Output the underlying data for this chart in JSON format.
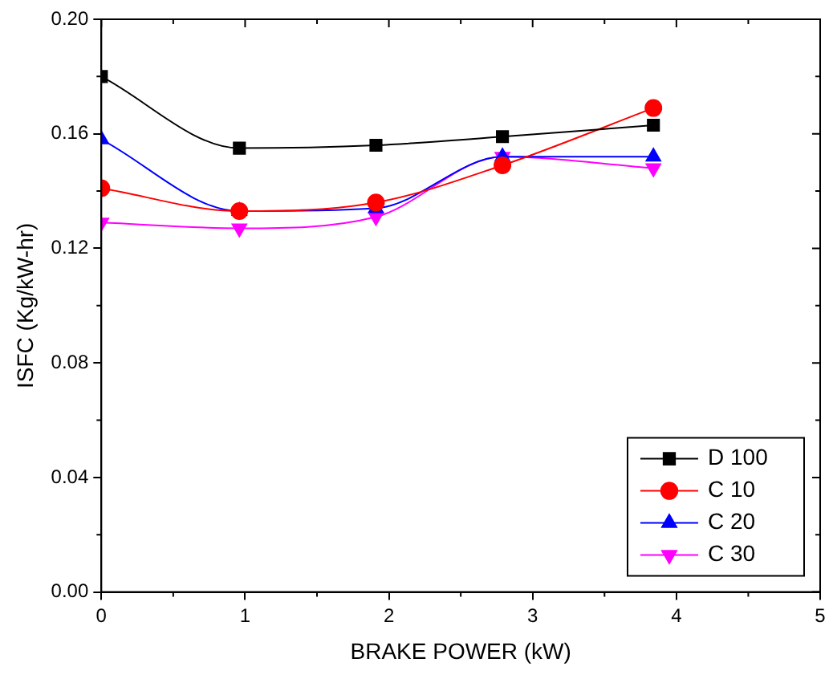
{
  "chart_data": {
    "type": "line",
    "xlabel": "BRAKE POWER (kW)",
    "ylabel": "ISFC (Kg/kW-hr)",
    "xlim": [
      0,
      5
    ],
    "xticks": [
      0,
      1,
      2,
      3,
      4,
      5
    ],
    "ylim": [
      0,
      0.2
    ],
    "yticks": [
      {
        "value": 0,
        "label": "0.00"
      },
      {
        "value": 0.04,
        "label": "0.04"
      },
      {
        "value": 0.08,
        "label": "0.08"
      },
      {
        "value": 0.12,
        "label": "0.12"
      },
      {
        "value": 0.16,
        "label": "0.16"
      },
      {
        "value": 0.2,
        "label": "0.20"
      }
    ],
    "x": [
      0,
      0.96,
      1.91,
      2.79,
      3.84
    ],
    "grid": false,
    "legend": "bottom right",
    "line_style": "solid",
    "series": [
      {
        "name": "D 100",
        "color": "#000000",
        "marker": "square",
        "values": [
          0.18,
          0.155,
          0.156,
          0.159,
          0.163
        ]
      },
      {
        "name": "C 10",
        "color": "#ff0000",
        "marker": "circle",
        "values": [
          0.141,
          0.133,
          0.136,
          0.149,
          0.169
        ]
      },
      {
        "name": "C 20",
        "color": "#0000ff",
        "marker": "triangle",
        "values": [
          0.158,
          0.133,
          0.134,
          0.152,
          0.152
        ]
      },
      {
        "name": "C 30",
        "color": "#ff00ff",
        "marker": "triangle-down",
        "values": [
          0.129,
          0.127,
          0.131,
          0.152,
          0.148
        ]
      }
    ]
  }
}
